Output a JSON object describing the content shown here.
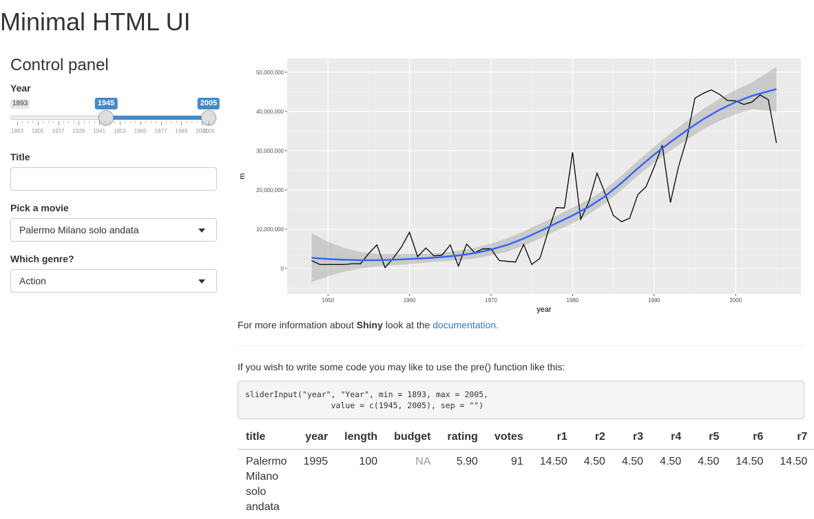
{
  "page": {
    "title": "Minimal HTML UI"
  },
  "sidebar": {
    "title": "Control panel",
    "year": {
      "label": "Year",
      "min": 1893,
      "max": 2005,
      "min_label": "1893",
      "value_low": 1945,
      "value_high": 2005,
      "value_low_label": "1945",
      "value_high_label": "2005",
      "tick_labels": [
        "1893",
        "1905",
        "1917",
        "1929",
        "1941",
        "1953",
        "1965",
        "1977",
        "1989",
        "2001",
        "2005"
      ]
    },
    "title_input": {
      "label": "Title",
      "value": ""
    },
    "movie": {
      "label": "Pick a movie",
      "selected": "Palermo Milano solo andata"
    },
    "genre": {
      "label": "Which genre?",
      "selected": "Action"
    }
  },
  "chart_data": {
    "type": "line",
    "xlabel": "year",
    "ylabel": "m",
    "xlim": [
      1945,
      2008
    ],
    "ylim": [
      -6500000,
      53500000
    ],
    "x_ticks": [
      1950,
      1960,
      1970,
      1980,
      1990,
      2000
    ],
    "y_ticks": [
      0,
      10000000,
      20000000,
      30000000,
      40000000,
      50000000
    ],
    "y_tick_labels": [
      "0",
      "10,000,000",
      "20,000,000",
      "30,000,000",
      "40,000,000",
      "50,000,000"
    ],
    "grid": true,
    "background": "#ebebeb",
    "series": [
      {
        "color": "#000000",
        "x": [
          1948,
          1949,
          1950,
          1951,
          1952,
          1953,
          1954,
          1955,
          1956,
          1957,
          1958,
          1959,
          1960,
          1961,
          1962,
          1963,
          1964,
          1965,
          1966,
          1967,
          1968,
          1969,
          1970,
          1971,
          1972,
          1973,
          1974,
          1975,
          1976,
          1977,
          1978,
          1979,
          1980,
          1981,
          1982,
          1983,
          1984,
          1985,
          1986,
          1987,
          1988,
          1989,
          1990,
          1991,
          1992,
          1993,
          1994,
          1995,
          1996,
          1997,
          1998,
          1999,
          2000,
          2001,
          2002,
          2003,
          2004,
          2005
        ],
        "y": [
          2000000,
          1000000,
          1000000,
          1000000,
          1000000,
          1200000,
          1200000,
          3800000,
          6000000,
          200000,
          2600000,
          5400000,
          9200000,
          3000000,
          5200000,
          3200000,
          3400000,
          6000000,
          600000,
          6200000,
          4000000,
          5000000,
          5000000,
          2000000,
          1800000,
          1600000,
          6100000,
          1000000,
          2600000,
          9400000,
          15500000,
          15400000,
          29600000,
          12500000,
          17000000,
          24300000,
          19000000,
          13500000,
          11900000,
          12800000,
          18800000,
          20800000,
          25800000,
          31400000,
          16800000,
          26000000,
          33000000,
          43400000,
          44600000,
          45500000,
          44400000,
          42800000,
          42700000,
          41800000,
          42400000,
          44200000,
          43000000,
          32000000
        ]
      },
      {
        "color": "#3366ff",
        "x": [
          1948,
          1950,
          1952,
          1954,
          1956,
          1958,
          1960,
          1962,
          1964,
          1966,
          1968,
          1970,
          1972,
          1974,
          1976,
          1978,
          1980,
          1982,
          1984,
          1986,
          1988,
          1990,
          1992,
          1994,
          1996,
          1998,
          2000,
          2002,
          2005
        ],
        "y": [
          2700000,
          2400000,
          2200000,
          2100000,
          2100000,
          2200000,
          2400000,
          2600000,
          2900000,
          3300000,
          3900000,
          4800000,
          6000000,
          7600000,
          9500000,
          11500000,
          13500000,
          15700000,
          18400000,
          21800000,
          25500000,
          29000000,
          32200000,
          35200000,
          38000000,
          40400000,
          42400000,
          44000000,
          45700000
        ],
        "band_low": [
          -3500000,
          -2000000,
          -800000,
          0,
          500000,
          800000,
          1100000,
          1500000,
          1800000,
          2100000,
          2500000,
          3300000,
          4300000,
          5800000,
          7600000,
          9600000,
          11500000,
          13800000,
          16600000,
          20000000,
          23600000,
          27000000,
          30000000,
          32800000,
          35400000,
          37600000,
          39300000,
          40600000,
          40000000
        ],
        "band_high": [
          9000000,
          6800000,
          5200000,
          4200000,
          3700000,
          3600000,
          3700000,
          3700000,
          4000000,
          4500000,
          5300000,
          6300000,
          7700000,
          9400000,
          11400000,
          13400000,
          15500000,
          17600000,
          20200000,
          23600000,
          27400000,
          31000000,
          34400000,
          37600000,
          40600000,
          43200000,
          45500000,
          47400000,
          51400000
        ]
      }
    ]
  },
  "info": {
    "prefix": "For more information about ",
    "brand": "Shiny",
    "middle": " look at the ",
    "link": "documentation.",
    "intro": "If you wish to write some code you may like to use the pre() function like this:",
    "code": "sliderInput(\"year\", \"Year\", min = 1893, max = 2005,\n                  value = c(1945, 2005), sep = \"\")"
  },
  "table": {
    "headers": [
      "title",
      "year",
      "length",
      "budget",
      "rating",
      "votes",
      "r1",
      "r2",
      "r3",
      "r4",
      "r5",
      "r6",
      "r7"
    ],
    "rows": [
      [
        "Palermo Milano solo andata",
        "1995",
        "100",
        "NA",
        "5.90",
        "91",
        "14.50",
        "4.50",
        "4.50",
        "4.50",
        "4.50",
        "14.50",
        "14.50"
      ]
    ]
  }
}
